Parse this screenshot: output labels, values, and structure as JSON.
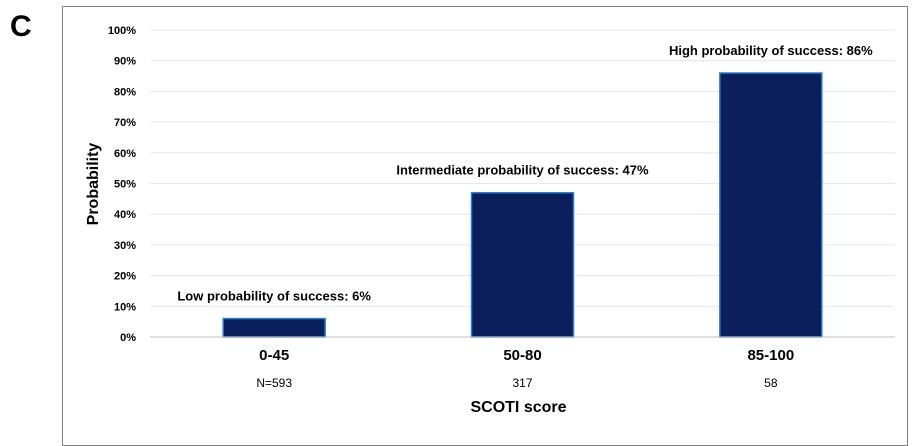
{
  "panel_label": "C",
  "chart_data": {
    "type": "bar",
    "categories": [
      "0-45",
      "50-80",
      "85-100"
    ],
    "values": [
      6,
      47,
      86
    ],
    "counts": [
      "N=593",
      "317",
      "58"
    ],
    "bar_labels": [
      "Low probability of success: 6%",
      "Intermediate probability of success:  47%",
      "High probability of success: 86%"
    ],
    "title": "",
    "xlabel": "SCOTI score",
    "ylabel": "Probability",
    "ylim": [
      0,
      100
    ],
    "yticks": [
      "0%",
      "10%",
      "20%",
      "30%",
      "40%",
      "50%",
      "60%",
      "70%",
      "80%",
      "90%",
      "100%"
    ],
    "grid": true,
    "colors": {
      "bar_fill": "#0a1f5c",
      "bar_edge": "#2e7fd0",
      "grid": "#e6e6e6",
      "axis": "#bfbfbf"
    }
  }
}
